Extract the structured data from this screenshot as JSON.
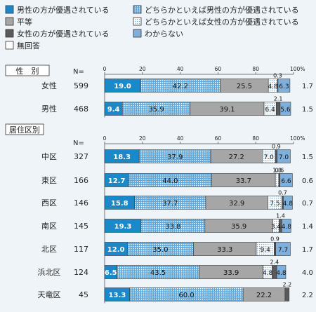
{
  "chart_data": {
    "type": "bar",
    "orientation": "horizontal",
    "stacked": true,
    "xlim": [
      0,
      100
    ],
    "ticks": [
      "0",
      "20",
      "40",
      "60",
      "80",
      "100%"
    ],
    "n_label": "N=",
    "legend": [
      {
        "key": "male",
        "label": "男性の方が優遇されている",
        "color": "#1a88c9",
        "pattern": "solid"
      },
      {
        "key": "rather_male",
        "label": "どちらかといえば男性の方が優遇されている",
        "color": "#5fa9dc",
        "pattern": "dots"
      },
      {
        "key": "equal",
        "label": "平等",
        "color": "#a6a6a6",
        "pattern": "solid"
      },
      {
        "key": "rather_female",
        "label": "どちらかといえば女性の方が優遇されている",
        "color": "#cfe3f2",
        "pattern": "dots"
      },
      {
        "key": "female",
        "label": "女性の方が優遇されている",
        "color": "#5a5a5a",
        "pattern": "solid"
      },
      {
        "key": "unknown",
        "label": "わからない",
        "color": "#7fb0dc",
        "pattern": "solid"
      },
      {
        "key": "no_answer",
        "label": "無回答",
        "color": "#ffffff",
        "pattern": "solid"
      }
    ],
    "groups": [
      {
        "title": "性　別",
        "rows": [
          {
            "label": "女性",
            "n": "599",
            "values": [
              19.0,
              42.2,
              25.5,
              4.8,
              0.3,
              6.3,
              1.7
            ],
            "labels": [
              "19.0",
              "42.2",
              "25.5",
              "4.8",
              "0.3",
              "6.3",
              "1.7"
            ]
          },
          {
            "label": "男性",
            "n": "468",
            "values": [
              9.4,
              35.9,
              39.1,
              6.4,
              2.1,
              5.6,
              1.5
            ],
            "labels": [
              "9.4",
              "35.9",
              "39.1",
              "6.4",
              "2.1",
              "5.6",
              "1.5"
            ]
          }
        ]
      },
      {
        "title": "居住区別",
        "rows": [
          {
            "label": "中区",
            "n": "327",
            "values": [
              18.3,
              37.9,
              27.2,
              7.0,
              0.9,
              7.0,
              1.5
            ],
            "labels": [
              "18.3",
              "37.9",
              "27.2",
              "7.0",
              "0.9",
              "7.0",
              "1.5"
            ]
          },
          {
            "label": "東区",
            "n": "166",
            "values": [
              12.7,
              44.0,
              33.7,
              1.8,
              0.6,
              6.6,
              0.6
            ],
            "labels": [
              "12.7",
              "44.0",
              "33.7",
              "1.8",
              "0.6",
              "6.6",
              "0.6"
            ]
          },
          {
            "label": "西区",
            "n": "146",
            "values": [
              15.8,
              37.7,
              32.9,
              7.5,
              0.7,
              4.8,
              0.7
            ],
            "labels": [
              "15.8",
              "37.7",
              "32.9",
              "7.5",
              "0.7",
              "4.8",
              "0.7"
            ]
          },
          {
            "label": "南区",
            "n": "145",
            "values": [
              19.3,
              33.8,
              35.9,
              3.4,
              1.4,
              4.8,
              1.4
            ],
            "labels": [
              "19.3",
              "33.8",
              "35.9",
              "3.4",
              "1.4",
              "4.8",
              "1.4"
            ]
          },
          {
            "label": "北区",
            "n": "117",
            "values": [
              12.0,
              35.0,
              33.3,
              9.4,
              0.9,
              7.7,
              1.7
            ],
            "labels": [
              "12.0",
              "35.0",
              "33.3",
              "9.4",
              "0.9",
              "7.7",
              "1.7"
            ]
          },
          {
            "label": "浜北区",
            "n": "124",
            "values": [
              6.5,
              43.5,
              33.9,
              4.8,
              2.4,
              4.8,
              4.0
            ],
            "labels": [
              "6.5",
              "43.5",
              "33.9",
              "4.8",
              "2.4",
              "4.8",
              "4.0"
            ]
          },
          {
            "label": "天竜区",
            "n": "45",
            "values": [
              13.3,
              60.0,
              22.2,
              0.0,
              2.2,
              0.0,
              2.2
            ],
            "labels": [
              "13.3",
              "60.0",
              "22.2",
              "",
              "2.2",
              "",
              "2.2"
            ]
          }
        ]
      }
    ]
  }
}
